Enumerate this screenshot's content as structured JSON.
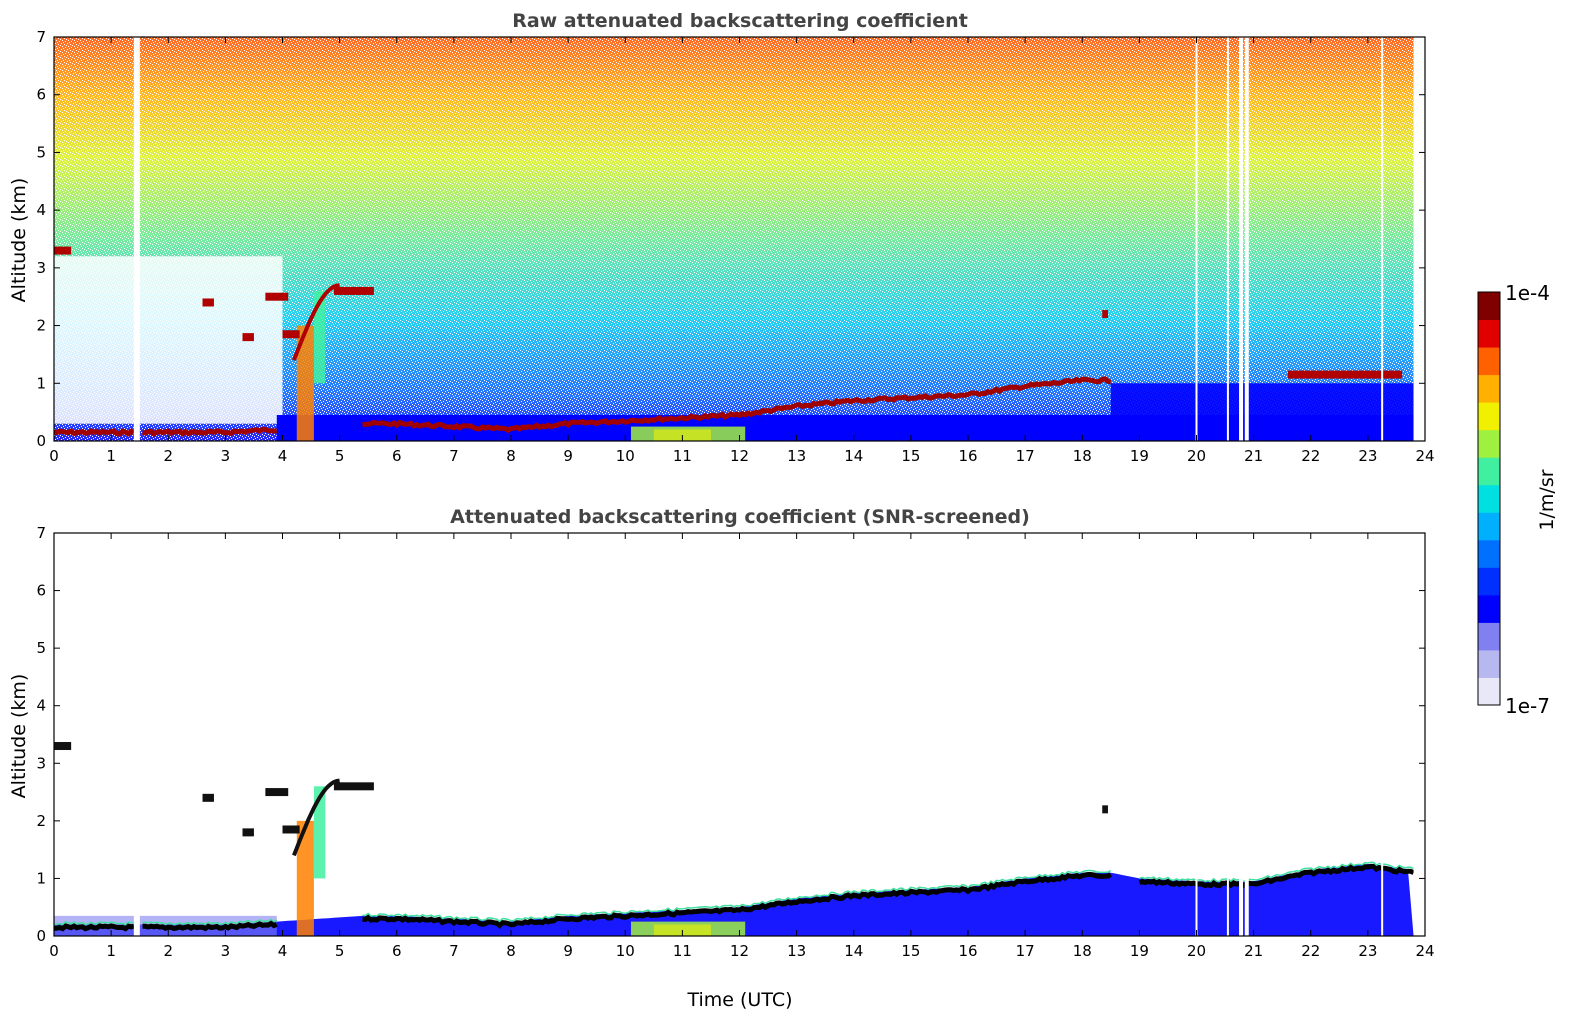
{
  "colorbar": {
    "label": "1/m/sr",
    "max_label": "1e-4",
    "min_label": "1e-7",
    "colors": [
      "#e8e8f8",
      "#b8b8f0",
      "#8080f0",
      "#0000ff",
      "#0030ff",
      "#0070ff",
      "#00b0ff",
      "#00e0e0",
      "#40f0a0",
      "#a0f040",
      "#f0f000",
      "#ffb000",
      "#ff6000",
      "#e00000",
      "#800000"
    ]
  },
  "chart_data": [
    {
      "type": "heatmap",
      "title": "Raw attenuated backscattering coefficient",
      "xlabel": "",
      "ylabel": "Altitude (km)",
      "xlim": [
        0,
        24
      ],
      "ylim": [
        0,
        7
      ],
      "xticks": [
        "0",
        "1",
        "2",
        "3",
        "4",
        "5",
        "6",
        "7",
        "8",
        "9",
        "10",
        "11",
        "12",
        "13",
        "14",
        "15",
        "16",
        "17",
        "18",
        "19",
        "20",
        "21",
        "22",
        "23",
        "24"
      ],
      "yticks": [
        "0",
        "1",
        "2",
        "3",
        "4",
        "5",
        "6",
        "7"
      ],
      "colorscale": "log",
      "value_range": [
        "1e-7",
        "1e-4"
      ],
      "boundary_layer_top_km": {
        "x": [
          0,
          1.5,
          3,
          3.9,
          5.4,
          6,
          7,
          8,
          9,
          10,
          11,
          12,
          13,
          14,
          15,
          16,
          17,
          18,
          18.5
        ],
        "y": [
          0.15,
          0.15,
          0.15,
          0.2,
          0.3,
          0.3,
          0.25,
          0.2,
          0.3,
          0.35,
          0.4,
          0.45,
          0.6,
          0.7,
          0.75,
          0.8,
          0.95,
          1.05,
          1.05
        ]
      },
      "cloud_layers": [
        {
          "x_start": 0.0,
          "x_end": 0.3,
          "altitude_km": 3.3
        },
        {
          "x_start": 3.7,
          "x_end": 4.1,
          "altitude_km": 2.5
        },
        {
          "x_start": 4.9,
          "x_end": 5.6,
          "altitude_km": 2.6
        },
        {
          "x_start": 21.6,
          "x_end": 23.6,
          "altitude_km": 1.15
        }
      ],
      "data_gaps_utc": [
        1.45,
        20.0,
        20.55,
        20.78,
        20.88,
        23.25
      ]
    },
    {
      "type": "heatmap",
      "title": "Attenuated backscattering coefficient (SNR-screened)",
      "xlabel": "Time (UTC)",
      "ylabel": "Altitude (km)",
      "xlim": [
        0,
        24
      ],
      "ylim": [
        0,
        7
      ],
      "xticks": [
        "0",
        "1",
        "2",
        "3",
        "4",
        "5",
        "6",
        "7",
        "8",
        "9",
        "10",
        "11",
        "12",
        "13",
        "14",
        "15",
        "16",
        "17",
        "18",
        "19",
        "20",
        "21",
        "22",
        "23",
        "24"
      ],
      "yticks": [
        "0",
        "1",
        "2",
        "3",
        "4",
        "5",
        "6",
        "7"
      ],
      "colorscale": "log",
      "value_range": [
        "1e-7",
        "1e-4"
      ],
      "boundary_layer_top_km": {
        "x": [
          0,
          1.5,
          3,
          3.9,
          5.4,
          6,
          7,
          8,
          9,
          10,
          11,
          12,
          13,
          14,
          15,
          16,
          17,
          18,
          18.5,
          19,
          20,
          21,
          22,
          23,
          23.8
        ],
        "y": [
          0.15,
          0.15,
          0.15,
          0.2,
          0.3,
          0.3,
          0.25,
          0.2,
          0.3,
          0.35,
          0.4,
          0.45,
          0.6,
          0.7,
          0.75,
          0.8,
          0.95,
          1.05,
          1.05,
          0.95,
          0.9,
          0.9,
          1.1,
          1.2,
          1.1
        ]
      },
      "data_gaps_utc": [
        1.45,
        20.0,
        20.55,
        20.78,
        20.88,
        23.25
      ]
    }
  ]
}
